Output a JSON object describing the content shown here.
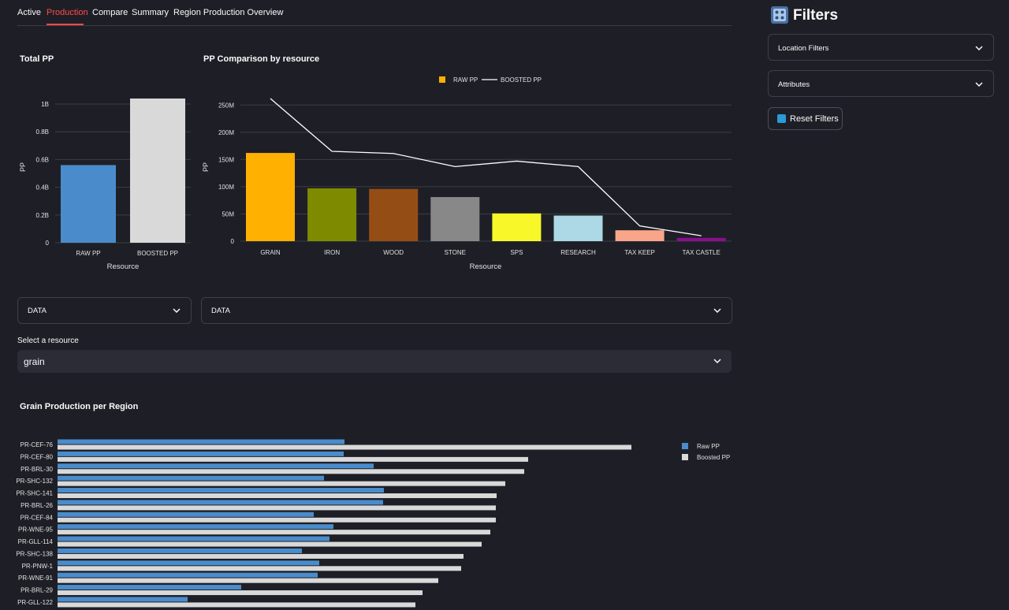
{
  "tabs": [
    {
      "label": "Active"
    },
    {
      "label": "Production",
      "active": true
    },
    {
      "label": "Compare"
    },
    {
      "label": "Summary"
    },
    {
      "label": "Region Production Overview"
    }
  ],
  "colors": {
    "accent": "#ff4b4b",
    "raw": "#4a8ccb",
    "boosted": "#d9d9d9"
  },
  "chart_data": [
    {
      "type": "bar",
      "title": "Total PP",
      "categories": [
        "RAW PP",
        "BOOSTED PP"
      ],
      "values": [
        560000000,
        1040000000
      ],
      "colors": [
        "#4a8ccb",
        "#d9d9d9"
      ],
      "xlabel": "Resource",
      "ylabel": "PP",
      "ylim": [
        0,
        1040000000
      ],
      "ticks": [
        {
          "v": 0,
          "label": "0"
        },
        {
          "v": 200000000,
          "label": "0.2B"
        },
        {
          "v": 400000000,
          "label": "0.4B"
        },
        {
          "v": 600000000,
          "label": "0.6B"
        },
        {
          "v": 800000000,
          "label": "0.8B"
        },
        {
          "v": 1000000000,
          "label": "1B"
        }
      ]
    },
    {
      "type": "bar+line",
      "title": "PP Comparison by resource",
      "categories": [
        "GRAIN",
        "IRON",
        "WOOD",
        "STONE",
        "SPS",
        "RESEARCH",
        "TAX KEEP",
        "TAX CASTLE"
      ],
      "series": [
        {
          "name": "RAW PP",
          "type": "bar",
          "values": [
            162000000,
            97000000,
            96000000,
            81000000,
            51000000,
            47000000,
            20000000,
            6000000
          ],
          "colors": [
            "#ffb000",
            "#7e8b00",
            "#954d16",
            "#888888",
            "#f7f72a",
            "#add8e6",
            "#f9a58a",
            "#8a0f8f"
          ]
        },
        {
          "name": "BOOSTED PP",
          "type": "line",
          "values": [
            262000000,
            165000000,
            161000000,
            137000000,
            147000000,
            137000000,
            28000000,
            10000000
          ]
        }
      ],
      "legend": [
        "RAW PP",
        "BOOSTED PP"
      ],
      "xlabel": "Resource",
      "ylabel": "PP",
      "ylim": [
        0,
        262000000
      ],
      "ticks": [
        {
          "v": 0,
          "label": "0"
        },
        {
          "v": 50000000,
          "label": "50M"
        },
        {
          "v": 100000000,
          "label": "100M"
        },
        {
          "v": 150000000,
          "label": "150M"
        },
        {
          "v": 200000000,
          "label": "200M"
        },
        {
          "v": 250000000,
          "label": "250M"
        }
      ]
    },
    {
      "type": "hbar",
      "title": "Grain Production per Region",
      "categories": [
        "PR-CEF-76",
        "PR-CEF-80",
        "PR-BRL-30",
        "PR-SHC-132",
        "PR-SHC-141",
        "PR-BRL-26",
        "PR-CEF-84",
        "PR-WNE-95",
        "PR-GLL-114",
        "PR-SHC-138",
        "PR-PNW-1",
        "PR-WNE-91",
        "PR-BRL-29",
        "PR-GLL-122"
      ],
      "series": [
        {
          "name": "Raw PP",
          "values": [
            3.64,
            3.63,
            4.01,
            3.38,
            4.14,
            4.13,
            3.25,
            3.5,
            3.45,
            3.1,
            3.32,
            3.3,
            2.33,
            1.65
          ]
        },
        {
          "name": "Boosted PP",
          "values": [
            7.28,
            5.97,
            5.92,
            5.68,
            5.57,
            5.56,
            5.56,
            5.49,
            5.38,
            5.15,
            5.12,
            4.83,
            4.63,
            4.54
          ]
        }
      ],
      "xlim": [
        0,
        8.5
      ]
    }
  ],
  "filters_top": [
    {
      "label": "DATA"
    },
    {
      "label": "DATA"
    }
  ],
  "resource_select": {
    "label": "Select a resource",
    "value": "grain"
  },
  "sidebar": {
    "title": "Filters",
    "dropdowns": [
      {
        "label": "Location Filters"
      },
      {
        "label": "Attributes"
      }
    ],
    "reset_label": "Reset Filters"
  }
}
